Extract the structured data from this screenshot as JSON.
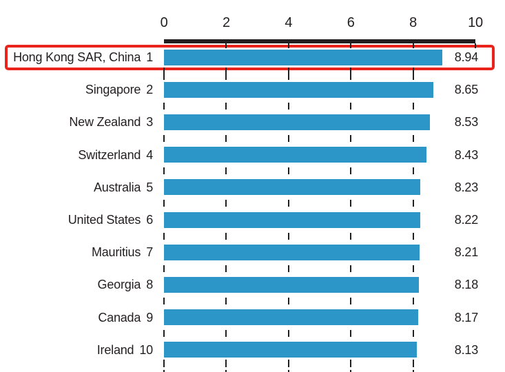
{
  "chart_data": {
    "type": "bar",
    "orientation": "horizontal",
    "title": "",
    "xlabel": "",
    "ylabel": "",
    "xlim": [
      0,
      10
    ],
    "axis_position": "top",
    "grid": {
      "style": "dashed-vertical",
      "gridline_ticks": [
        0,
        2,
        4,
        6,
        8
      ]
    },
    "x_axis": {
      "tick_values": [
        0,
        2,
        4,
        6,
        8,
        10
      ],
      "tick_labels": [
        "0",
        "2",
        "4",
        "6",
        "8",
        "10"
      ]
    },
    "categories": [
      "Hong Kong SAR, China",
      "Singapore",
      "New Zealand",
      "Switzerland",
      "Australia",
      "United States",
      "Mauritius",
      "Georgia",
      "Canada",
      "Ireland"
    ],
    "ranks": [
      "1",
      "2",
      "3",
      "4",
      "5",
      "6",
      "7",
      "8",
      "9",
      "10"
    ],
    "values": [
      8.94,
      8.65,
      8.53,
      8.43,
      8.23,
      8.22,
      8.21,
      8.18,
      8.17,
      8.13
    ],
    "value_labels": [
      "8.94",
      "8.65",
      "8.53",
      "8.43",
      "8.23",
      "8.22",
      "8.21",
      "8.18",
      "8.17",
      "8.13"
    ],
    "highlight": {
      "category": "Hong Kong SAR, China",
      "index": 0,
      "style": "red-outline-box"
    },
    "legend": null,
    "colors": {
      "bar": "#2d96c9",
      "axis": "#231f20",
      "text": "#231f20",
      "gridline": "#231f20",
      "highlight_box": "#ea241c",
      "background": "#ffffff"
    }
  }
}
